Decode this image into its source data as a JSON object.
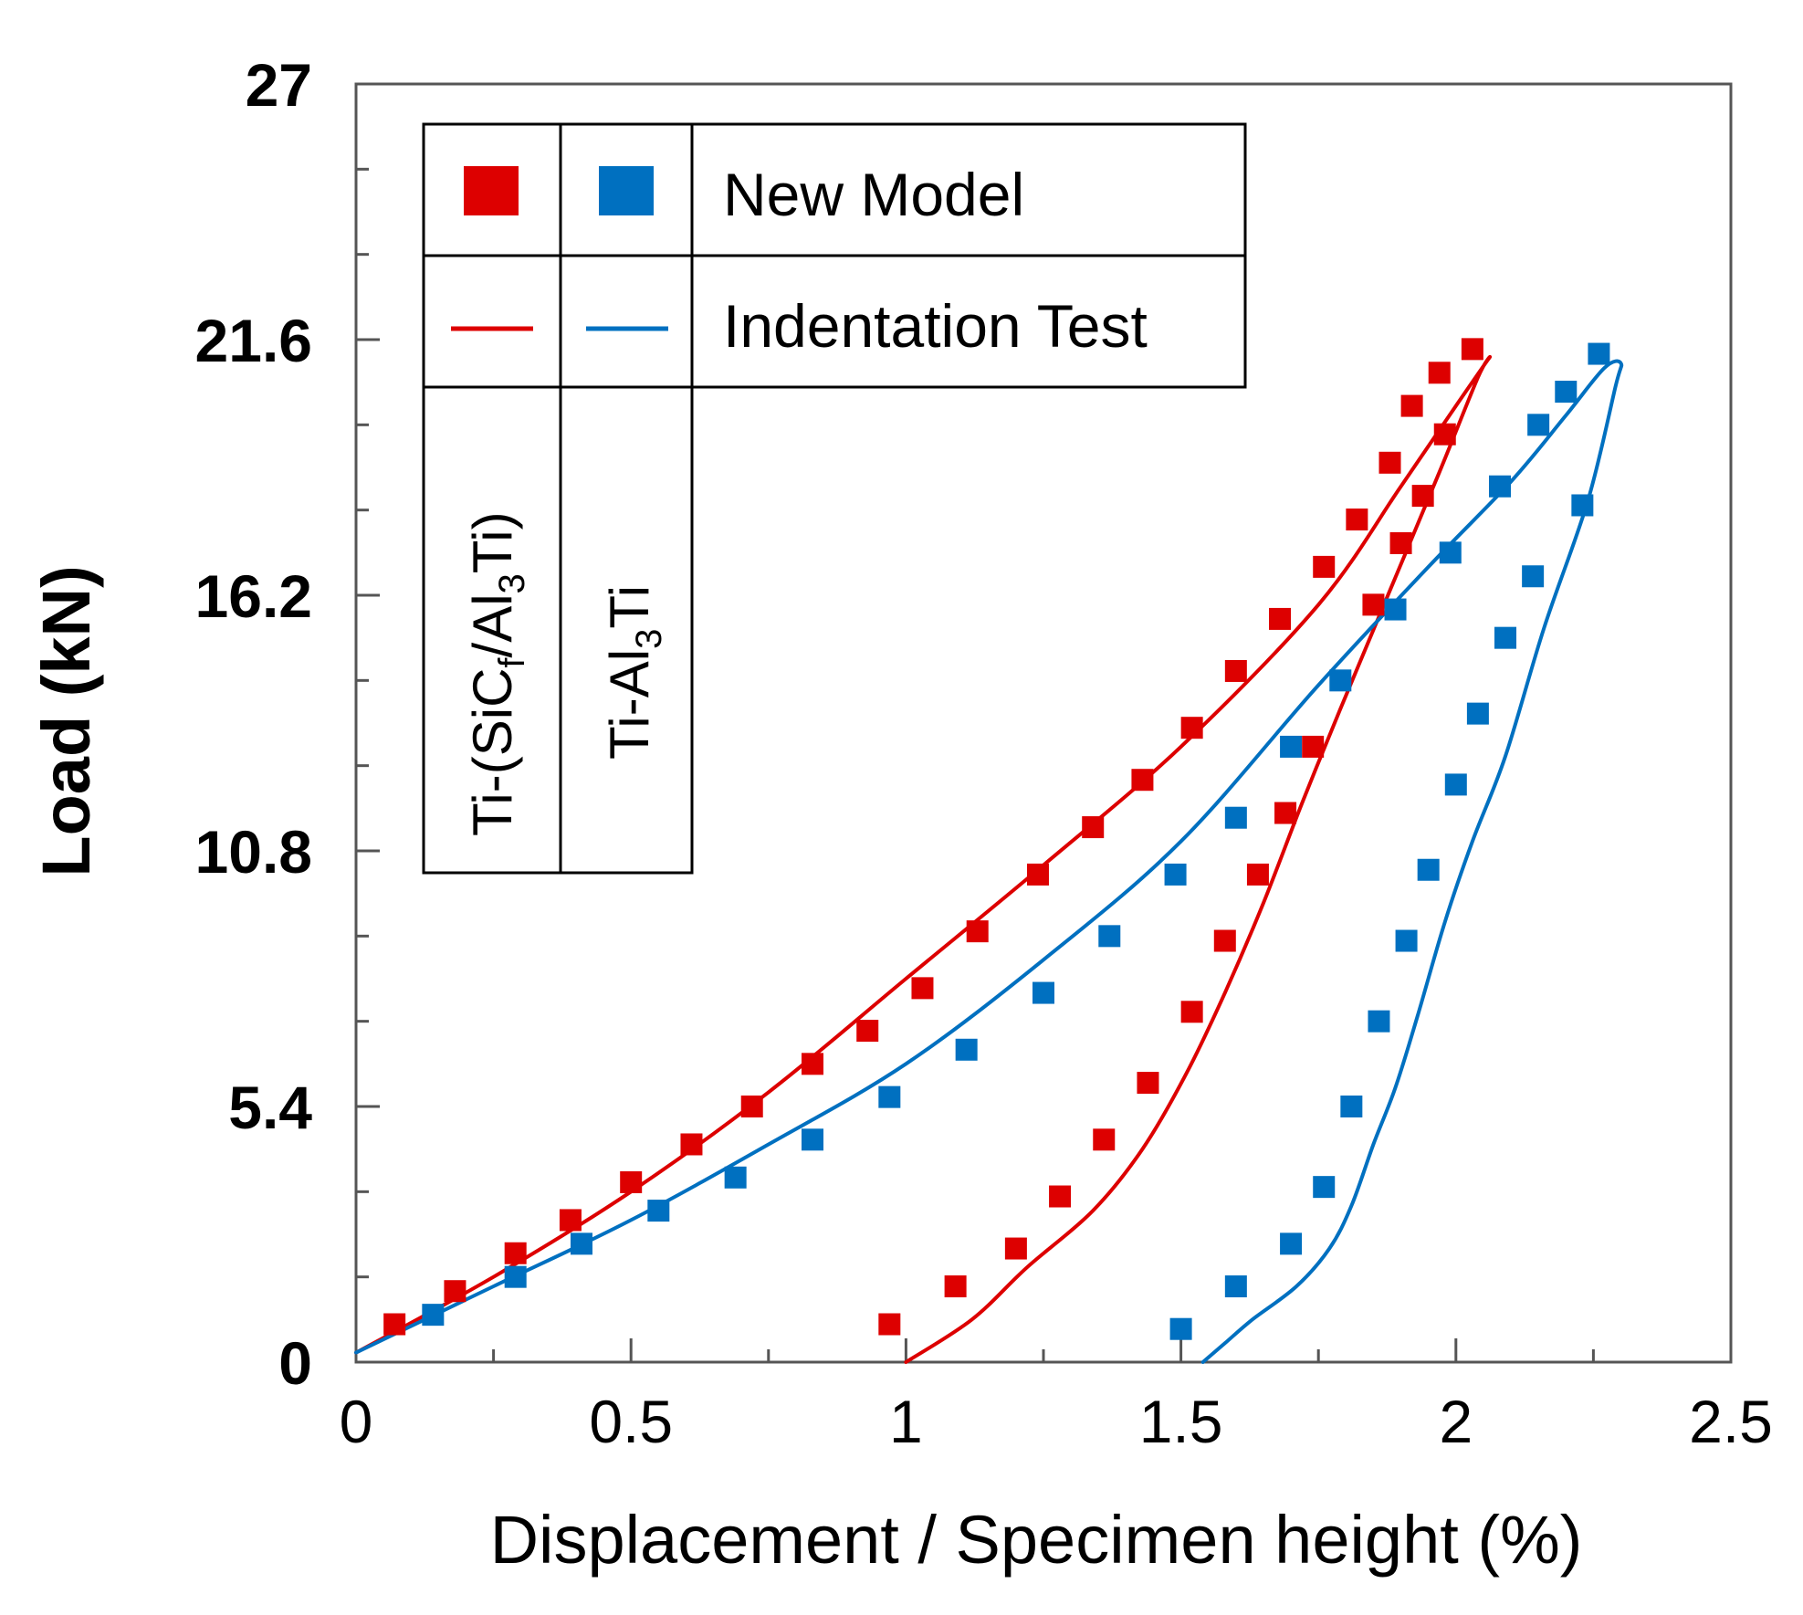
{
  "chart_data": {
    "type": "line",
    "title": "",
    "xlabel": "Displacement / Specimen height (%)",
    "ylabel": "Load (kN)",
    "xlim": [
      0,
      2.5
    ],
    "ylim": [
      0,
      27
    ],
    "x_ticks": [
      "0",
      "0.5",
      "1",
      "1.5",
      "2",
      "2.5"
    ],
    "y_ticks": [
      "0",
      "5.4",
      "10.8",
      "16.2",
      "21.6",
      "27"
    ],
    "grid": false,
    "legend": {
      "position": "top-left",
      "markers_label": "New Model",
      "lines_label": "Indentation Test",
      "materials": [
        {
          "prefix": "Ti-(SiC",
          "sub1": "f",
          "mid": "/Al",
          "sub2": "3",
          "suffix": "Ti)"
        },
        {
          "prefix": "Ti-Al",
          "sub1": "3",
          "suffix": "Ti"
        }
      ]
    },
    "series": [
      {
        "name": "Ti-(SiCf/Al3Ti) New Model",
        "kind": "markers",
        "color": "#dd0000",
        "x": [
          0.07,
          0.18,
          0.29,
          0.39,
          0.5,
          0.61,
          0.72,
          0.83,
          0.93,
          1.03,
          1.13,
          1.24,
          1.34,
          1.43,
          1.52,
          1.6,
          1.68,
          1.76,
          1.82,
          1.88,
          1.92,
          1.97,
          1.2,
          1.09,
          0.97,
          1.28,
          1.36,
          1.44,
          1.52,
          1.58,
          1.64,
          1.69,
          1.74,
          1.85,
          1.9,
          1.94,
          1.98,
          2.03
        ],
        "y": [
          0.8,
          1.5,
          2.3,
          3.0,
          3.8,
          4.6,
          5.4,
          6.3,
          7.0,
          7.9,
          9.1,
          10.3,
          11.3,
          12.3,
          13.4,
          14.6,
          15.7,
          16.8,
          17.8,
          19.0,
          20.2,
          20.9,
          2.4,
          1.6,
          0.8,
          3.5,
          4.7,
          5.9,
          7.4,
          8.9,
          10.3,
          11.6,
          13.0,
          16.0,
          17.3,
          18.3,
          19.6,
          21.4
        ],
        "_order_note": "loading branch first, then unloading branch"
      },
      {
        "name": "Ti-Al3Ti New Model",
        "kind": "markers",
        "color": "#0070c0",
        "x": [
          0.14,
          0.29,
          0.41,
          0.55,
          0.69,
          0.83,
          0.97,
          1.11,
          1.25,
          1.37,
          1.49,
          1.6,
          1.7,
          1.79,
          1.89,
          1.99,
          2.08,
          2.15,
          2.2,
          2.26,
          2.23,
          2.14,
          2.09,
          2.04,
          2.0,
          1.95,
          1.91,
          1.86,
          1.81,
          1.76,
          1.7,
          1.6,
          1.5
        ],
        "y": [
          1.0,
          1.8,
          2.5,
          3.2,
          3.9,
          4.7,
          5.6,
          6.6,
          7.8,
          9.0,
          10.3,
          11.5,
          13.0,
          14.4,
          15.9,
          17.1,
          18.5,
          19.8,
          20.5,
          21.3,
          18.1,
          16.6,
          15.3,
          13.7,
          12.2,
          10.4,
          8.9,
          7.2,
          5.4,
          3.7,
          2.5,
          1.6,
          0.7
        ],
        "_order_note": "loading branch first, then unloading branch"
      },
      {
        "name": "Ti-(SiCf/Al3Ti) Indentation Test",
        "kind": "line",
        "color": "#dd0000",
        "x": [
          0.0,
          0.25,
          0.5,
          0.75,
          1.0,
          1.25,
          1.5,
          1.75,
          1.9,
          2.0,
          2.06,
          2.04,
          1.97,
          1.88,
          1.79,
          1.72,
          1.65,
          1.58,
          1.51,
          1.43,
          1.34,
          1.22,
          1.12,
          1.0
        ],
        "y": [
          0.2,
          1.8,
          3.6,
          5.7,
          8.1,
          10.5,
          13.0,
          16.0,
          18.5,
          20.2,
          21.2,
          20.8,
          18.8,
          16.3,
          13.8,
          11.8,
          9.7,
          7.8,
          6.1,
          4.5,
          3.2,
          2.0,
          0.9,
          0.0
        ]
      },
      {
        "name": "Ti-Al3Ti Indentation Test",
        "kind": "line",
        "color": "#0070c0",
        "x": [
          0.0,
          0.25,
          0.5,
          0.75,
          1.0,
          1.25,
          1.5,
          1.75,
          1.95,
          2.1,
          2.2,
          2.27,
          2.3,
          2.29,
          2.24,
          2.16,
          2.09,
          2.03,
          1.98,
          1.93,
          1.89,
          1.85,
          1.81,
          1.77,
          1.71,
          1.63,
          1.58,
          1.54
        ],
        "y": [
          0.2,
          1.6,
          3.0,
          4.6,
          6.3,
          8.5,
          11.0,
          14.3,
          16.8,
          18.6,
          20.0,
          21.0,
          21.1,
          20.6,
          18.2,
          15.5,
          12.8,
          11.0,
          9.3,
          7.3,
          5.8,
          4.6,
          3.3,
          2.4,
          1.6,
          0.9,
          0.4,
          0.0
        ]
      }
    ]
  }
}
